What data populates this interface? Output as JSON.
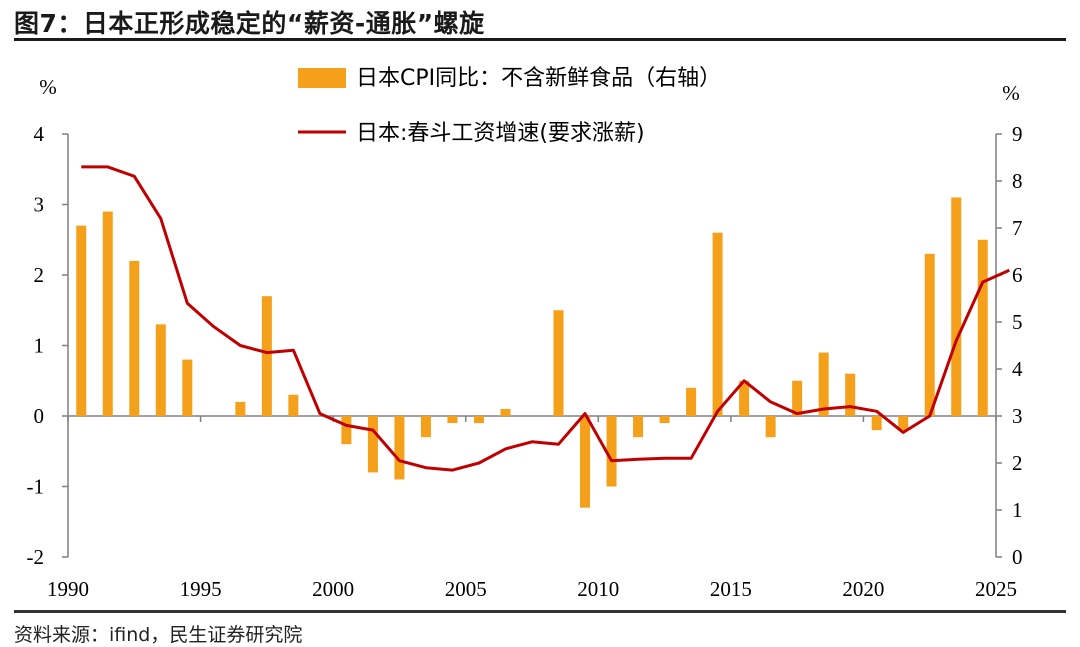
{
  "title": "图7：日本正形成稳定的“薪资-通胀”螺旋",
  "source": "资料来源：ifind，民生证券研究院",
  "chart_data": {
    "type": "bar+line",
    "left_axis_label": "%",
    "right_axis_label": "%",
    "left_ylim": [
      -2,
      4
    ],
    "left_yticks": [
      "4",
      "3",
      "2",
      "1",
      "0",
      "-1",
      "-2"
    ],
    "right_ylim": [
      0,
      9
    ],
    "right_yticks": [
      "9",
      "8",
      "7",
      "6",
      "5",
      "4",
      "3",
      "2",
      "1",
      "0"
    ],
    "xlim": [
      1990,
      2025
    ],
    "xticks": [
      "1990",
      "1995",
      "2000",
      "2005",
      "2010",
      "2015",
      "2020",
      "2025"
    ],
    "legend": [
      "日本CPI同比：不含新鲜食品（右轴）",
      "日本:春斗工资增速(要求涨薪)"
    ],
    "colors": {
      "bar": "#F5A01A",
      "line": "#C00000"
    },
    "bars": {
      "name": "日本CPI同比：不含新鲜食品（右轴）",
      "x": [
        1990,
        1991,
        1992,
        1993,
        1994,
        1995,
        1996,
        1997,
        1998,
        1999,
        2000,
        2001,
        2002,
        2003,
        2004,
        2005,
        2006,
        2007,
        2008,
        2009,
        2010,
        2011,
        2012,
        2013,
        2014,
        2015,
        2016,
        2017,
        2018,
        2019,
        2020,
        2021,
        2022,
        2023,
        2024
      ],
      "values": [
        2.7,
        2.9,
        2.2,
        1.3,
        0.8,
        0.0,
        0.2,
        1.7,
        0.3,
        0.0,
        -0.4,
        -0.8,
        -0.9,
        -0.3,
        -0.1,
        -0.1,
        0.1,
        0.0,
        1.5,
        -1.3,
        -1.0,
        -0.3,
        -0.1,
        0.4,
        2.6,
        0.5,
        -0.3,
        0.5,
        0.9,
        0.6,
        -0.2,
        -0.2,
        2.3,
        3.1,
        2.5
      ]
    },
    "line": {
      "name": "日本:春斗工资增速(要求涨薪)",
      "x": [
        1990,
        1991,
        1992,
        1993,
        1994,
        1995,
        1996,
        1997,
        1998,
        1999,
        2000,
        2001,
        2002,
        2003,
        2004,
        2005,
        2006,
        2007,
        2008,
        2009,
        2010,
        2011,
        2012,
        2013,
        2014,
        2015,
        2016,
        2017,
        2018,
        2019,
        2020,
        2021,
        2022,
        2023,
        2024,
        2025
      ],
      "values": [
        8.3,
        8.3,
        8.1,
        7.2,
        5.4,
        4.9,
        4.5,
        4.35,
        4.4,
        3.05,
        2.8,
        2.7,
        2.05,
        1.9,
        1.85,
        2.0,
        2.3,
        2.45,
        2.4,
        3.05,
        2.05,
        2.08,
        2.1,
        2.1,
        3.1,
        3.75,
        3.3,
        3.05,
        3.15,
        3.2,
        3.1,
        2.65,
        3.0,
        4.6,
        5.85,
        6.1
      ]
    }
  }
}
